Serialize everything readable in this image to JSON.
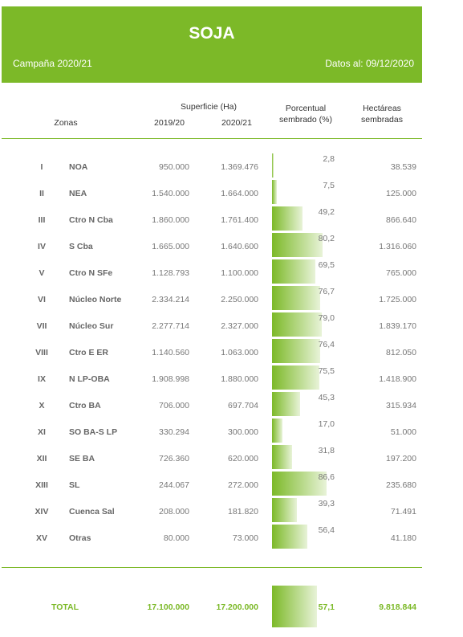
{
  "header": {
    "title": "SOJA",
    "campaign": "Campaña 2020/21",
    "date": "Datos al: 09/12/2020"
  },
  "columns": {
    "zones": "Zonas",
    "surface": "Superficie (Ha)",
    "year1": "2019/20",
    "year2": "2020/21",
    "pct_line1": "Porcentual",
    "pct_line2": "sembrado (%)",
    "ha_line1": "Hectáreas",
    "ha_line2": "sembradas"
  },
  "rows": [
    {
      "num": "I",
      "zone": "NOA",
      "y1": "950.000",
      "y2": "1.369.476",
      "pct": "2,8",
      "pct_value": 2.8,
      "ha": "38.539"
    },
    {
      "num": "II",
      "zone": "NEA",
      "y1": "1.540.000",
      "y2": "1.664.000",
      "pct": "7,5",
      "pct_value": 7.5,
      "ha": "125.000"
    },
    {
      "num": "III",
      "zone": "Ctro N Cba",
      "y1": "1.860.000",
      "y2": "1.761.400",
      "pct": "49,2",
      "pct_value": 49.2,
      "ha": "866.640"
    },
    {
      "num": "IV",
      "zone": "S Cba",
      "y1": "1.665.000",
      "y2": "1.640.600",
      "pct": "80,2",
      "pct_value": 80.2,
      "ha": "1.316.060"
    },
    {
      "num": "V",
      "zone": "Ctro N SFe",
      "y1": "1.128.793",
      "y2": "1.100.000",
      "pct": "69,5",
      "pct_value": 69.5,
      "ha": "765.000"
    },
    {
      "num": "VI",
      "zone": "Núcleo Norte",
      "y1": "2.334.214",
      "y2": "2.250.000",
      "pct": "76,7",
      "pct_value": 76.7,
      "ha": "1.725.000"
    },
    {
      "num": "VII",
      "zone": "Núcleo Sur",
      "y1": "2.277.714",
      "y2": "2.327.000",
      "pct": "79,0",
      "pct_value": 79.0,
      "ha": "1.839.170"
    },
    {
      "num": "VIII",
      "zone": "Ctro E ER",
      "y1": "1.140.560",
      "y2": "1.063.000",
      "pct": "76,4",
      "pct_value": 76.4,
      "ha": "812.050"
    },
    {
      "num": "IX",
      "zone": "N LP-OBA",
      "y1": "1.908.998",
      "y2": "1.880.000",
      "pct": "75,5",
      "pct_value": 75.5,
      "ha": "1.418.900"
    },
    {
      "num": "X",
      "zone": "Ctro BA",
      "y1": "706.000",
      "y2": "697.704",
      "pct": "45,3",
      "pct_value": 45.3,
      "ha": "315.934"
    },
    {
      "num": "XI",
      "zone": "SO BA-S LP",
      "y1": "330.294",
      "y2": "300.000",
      "pct": "17,0",
      "pct_value": 17.0,
      "ha": "51.000"
    },
    {
      "num": "XII",
      "zone": "SE BA",
      "y1": "726.360",
      "y2": "620.000",
      "pct": "31,8",
      "pct_value": 31.8,
      "ha": "197.200"
    },
    {
      "num": "XIII",
      "zone": "SL",
      "y1": "244.067",
      "y2": "272.000",
      "pct": "86,6",
      "pct_value": 86.6,
      "ha": "235.680"
    },
    {
      "num": "XIV",
      "zone": "Cuenca Sal",
      "y1": "208.000",
      "y2": "181.820",
      "pct": "39,3",
      "pct_value": 39.3,
      "ha": "71.491"
    },
    {
      "num": "XV",
      "zone": "Otras",
      "y1": "80.000",
      "y2": "73.000",
      "pct": "56,4",
      "pct_value": 56.4,
      "ha": "41.180"
    }
  ],
  "total": {
    "label": "TOTAL",
    "y1": "17.100.000",
    "y2": "17.200.000",
    "pct": "57,1",
    "pct_value": 57.1,
    "ha": "9.818.844"
  },
  "colors": {
    "accent": "#7cb928"
  }
}
